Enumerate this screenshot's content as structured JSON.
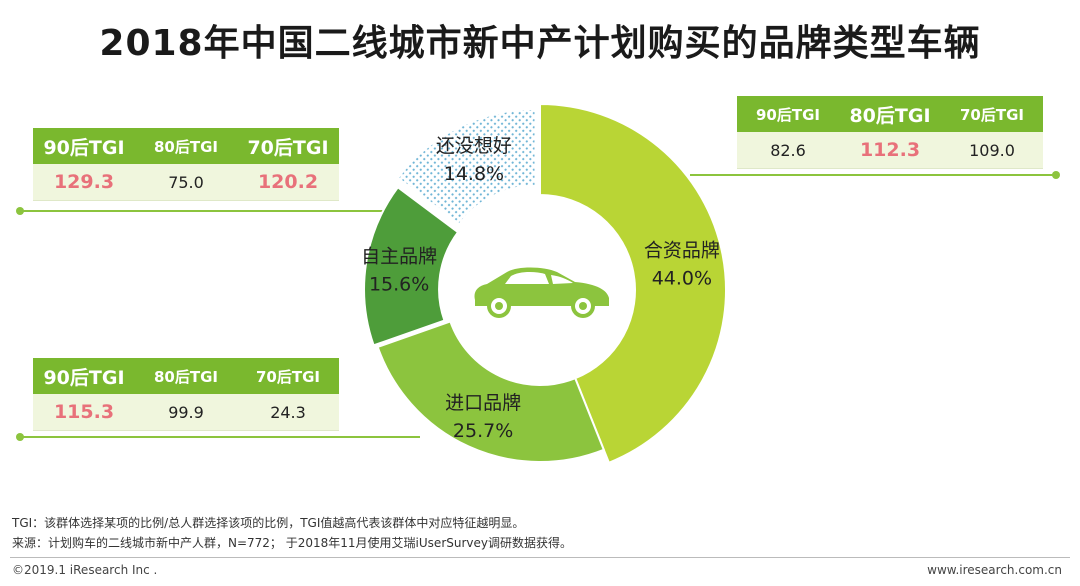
{
  "title": "2018年中国二线城市新中产计划购买的品牌类型车辆",
  "chart_data": {
    "type": "pie",
    "style": "donut",
    "title": "2018年中国二线城市新中产计划购买的品牌类型车辆",
    "unit": "%",
    "slices": [
      {
        "label": "合资品牌",
        "value": 44.0,
        "value_text": "44.0%",
        "color": "#b9d535"
      },
      {
        "label": "进口品牌",
        "value": 25.7,
        "value_text": "25.7%",
        "color": "#8cc43e"
      },
      {
        "label": "自主品牌",
        "value": 15.6,
        "value_text": "15.6%",
        "color": "#4e9d3a"
      },
      {
        "label": "还没想好",
        "value": 14.8,
        "value_text": "14.8%",
        "color": "#a9d3e6",
        "pattern": "dotted"
      }
    ],
    "center_icon": "car-icon"
  },
  "tgi_tables": {
    "joint": {
      "headers": [
        "90后TGI",
        "80后TGI",
        "70后TGI"
      ],
      "values": [
        "82.6",
        "112.3",
        "109.0"
      ],
      "highlight": [
        false,
        true,
        false
      ]
    },
    "domestic": {
      "headers": [
        "90后TGI",
        "80后TGI",
        "70后TGI"
      ],
      "values": [
        "129.3",
        "75.0",
        "120.2"
      ],
      "highlight": [
        true,
        false,
        true
      ]
    },
    "imported": {
      "headers": [
        "90后TGI",
        "80后TGI",
        "70后TGI"
      ],
      "values": [
        "115.3",
        "99.9",
        "24.3"
      ],
      "highlight": [
        true,
        false,
        false
      ]
    }
  },
  "notes": {
    "tgi": "TGI：该群体选择某项的比例/总人群选择该项的比例，TGI值越高代表该群体中对应特征越明显。",
    "source": "来源：计划购车的二线城市新中产人群，N=772； 于2018年11月使用艾瑞iUserSurvey调研数据获得。"
  },
  "footer": {
    "copyright": "©2019.1 iResearch Inc .",
    "website": "www.iresearch.com.cn"
  },
  "colors": {
    "accent": "#7ab82e",
    "highlight": "#e8717a",
    "connector": "#8cc43e"
  }
}
